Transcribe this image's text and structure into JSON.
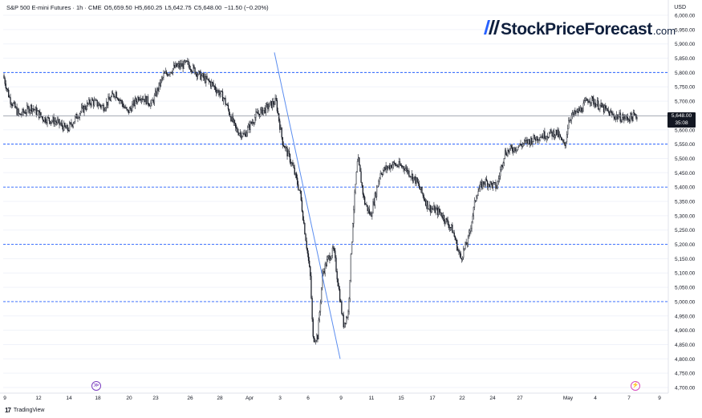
{
  "header": {
    "symbol": "S&P 500 E-mini Futures · 1h · CME",
    "open": "O5,659.50",
    "high": "H5,660.25",
    "low": "L5,642.75",
    "close": "C5,648.00",
    "change": "−11.50 (−0.20%)"
  },
  "logo": {
    "brand": "StockPriceForecast",
    "tld": ".com"
  },
  "currency": "USD",
  "footer": {
    "brand": "TradingView"
  },
  "price_badge": {
    "price": "5,648.00",
    "countdown": "35:08"
  },
  "events": {
    "e1": "≫",
    "e2": "⚡"
  },
  "colors": {
    "candle": "#131722",
    "level_line": "#2962ff",
    "trend_line": "#5b8def",
    "price_line": "#9598a1",
    "grid": "#f0f3fa"
  },
  "chart_data": {
    "type": "candlestick",
    "title": "S&P 500 E-mini Futures · 1h · CME",
    "ylabel": "USD",
    "ylim": [
      4700,
      6000
    ],
    "y_ticks": [
      "6,000.00",
      "5,950.00",
      "5,900.00",
      "5,850.00",
      "5,800.00",
      "5,750.00",
      "5,700.00",
      "5,650.00",
      "5,600.00",
      "5,550.00",
      "5,500.00",
      "5,450.00",
      "5,400.00",
      "5,350.00",
      "5,300.00",
      "5,250.00",
      "5,200.00",
      "5,150.00",
      "5,100.00",
      "5,050.00",
      "5,000.00",
      "4,950.00",
      "4,900.00",
      "4,850.00",
      "4,800.00",
      "4,750.00",
      "4,700.00"
    ],
    "x_ticks": [
      "9",
      "12",
      "14",
      "18",
      "20",
      "23",
      "26",
      "28",
      "Apr",
      "3",
      "6",
      "9",
      "11",
      "15",
      "17",
      "22",
      "24",
      "27",
      "May",
      "4",
      "7",
      "9"
    ],
    "horizontal_levels": [
      5800,
      5550,
      5400,
      5200,
      5000
    ],
    "last_price": 5648.0,
    "path": [
      [
        0,
        5790
      ],
      [
        8,
        5710
      ],
      [
        20,
        5650
      ],
      [
        35,
        5680
      ],
      [
        50,
        5640
      ],
      [
        65,
        5630
      ],
      [
        80,
        5600
      ],
      [
        95,
        5660
      ],
      [
        110,
        5700
      ],
      [
        125,
        5680
      ],
      [
        140,
        5730
      ],
      [
        155,
        5660
      ],
      [
        170,
        5720
      ],
      [
        185,
        5690
      ],
      [
        200,
        5790
      ],
      [
        215,
        5820
      ],
      [
        230,
        5830
      ],
      [
        245,
        5790
      ],
      [
        260,
        5760
      ],
      [
        275,
        5710
      ],
      [
        290,
        5600
      ],
      [
        300,
        5580
      ],
      [
        315,
        5650
      ],
      [
        330,
        5680
      ],
      [
        340,
        5700
      ],
      [
        348,
        5560
      ],
      [
        360,
        5480
      ],
      [
        370,
        5380
      ],
      [
        378,
        5200
      ],
      [
        383,
        5080
      ],
      [
        386,
        4870
      ],
      [
        392,
        4880
      ],
      [
        398,
        5100
      ],
      [
        405,
        5150
      ],
      [
        412,
        5180
      ],
      [
        418,
        5050
      ],
      [
        424,
        4920
      ],
      [
        430,
        4960
      ],
      [
        436,
        5300
      ],
      [
        442,
        5500
      ],
      [
        450,
        5350
      ],
      [
        458,
        5300
      ],
      [
        470,
        5450
      ],
      [
        485,
        5480
      ],
      [
        500,
        5470
      ],
      [
        515,
        5420
      ],
      [
        530,
        5330
      ],
      [
        545,
        5310
      ],
      [
        560,
        5250
      ],
      [
        570,
        5150
      ],
      [
        580,
        5220
      ],
      [
        590,
        5380
      ],
      [
        600,
        5420
      ],
      [
        615,
        5400
      ],
      [
        625,
        5520
      ],
      [
        640,
        5540
      ],
      [
        655,
        5560
      ],
      [
        670,
        5580
      ],
      [
        690,
        5590
      ],
      [
        700,
        5540
      ],
      [
        705,
        5640
      ],
      [
        720,
        5670
      ],
      [
        730,
        5710
      ],
      [
        745,
        5680
      ],
      [
        760,
        5650
      ],
      [
        775,
        5640
      ],
      [
        790,
        5648
      ]
    ],
    "trend_line": {
      "from": [
        338,
        5870
      ],
      "to": [
        420,
        4800
      ]
    }
  }
}
